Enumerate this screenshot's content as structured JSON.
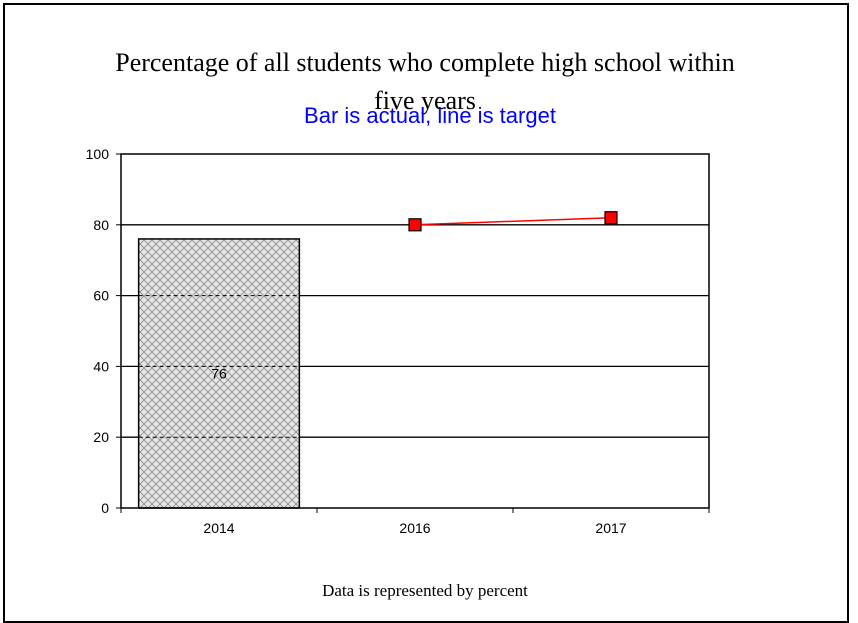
{
  "chart_data": {
    "type": "bar",
    "title": "Percentage of all students who complete high school within five years",
    "subtitle": "Bar is actual, line is target",
    "footnote": "Data is represented by percent",
    "categories": [
      "2014",
      "2016",
      "2017"
    ],
    "ylim": [
      0,
      100
    ],
    "yticks": [
      0,
      20,
      40,
      60,
      80,
      100
    ],
    "grid": true,
    "series": [
      {
        "type": "bar",
        "values": [
          76,
          null,
          null
        ],
        "data_labels": [
          "76",
          "",
          ""
        ],
        "color": "#c8c8c8",
        "pattern": "crosshatch"
      },
      {
        "type": "line",
        "values": [
          null,
          80,
          82
        ],
        "color": "#ff0000"
      }
    ]
  }
}
